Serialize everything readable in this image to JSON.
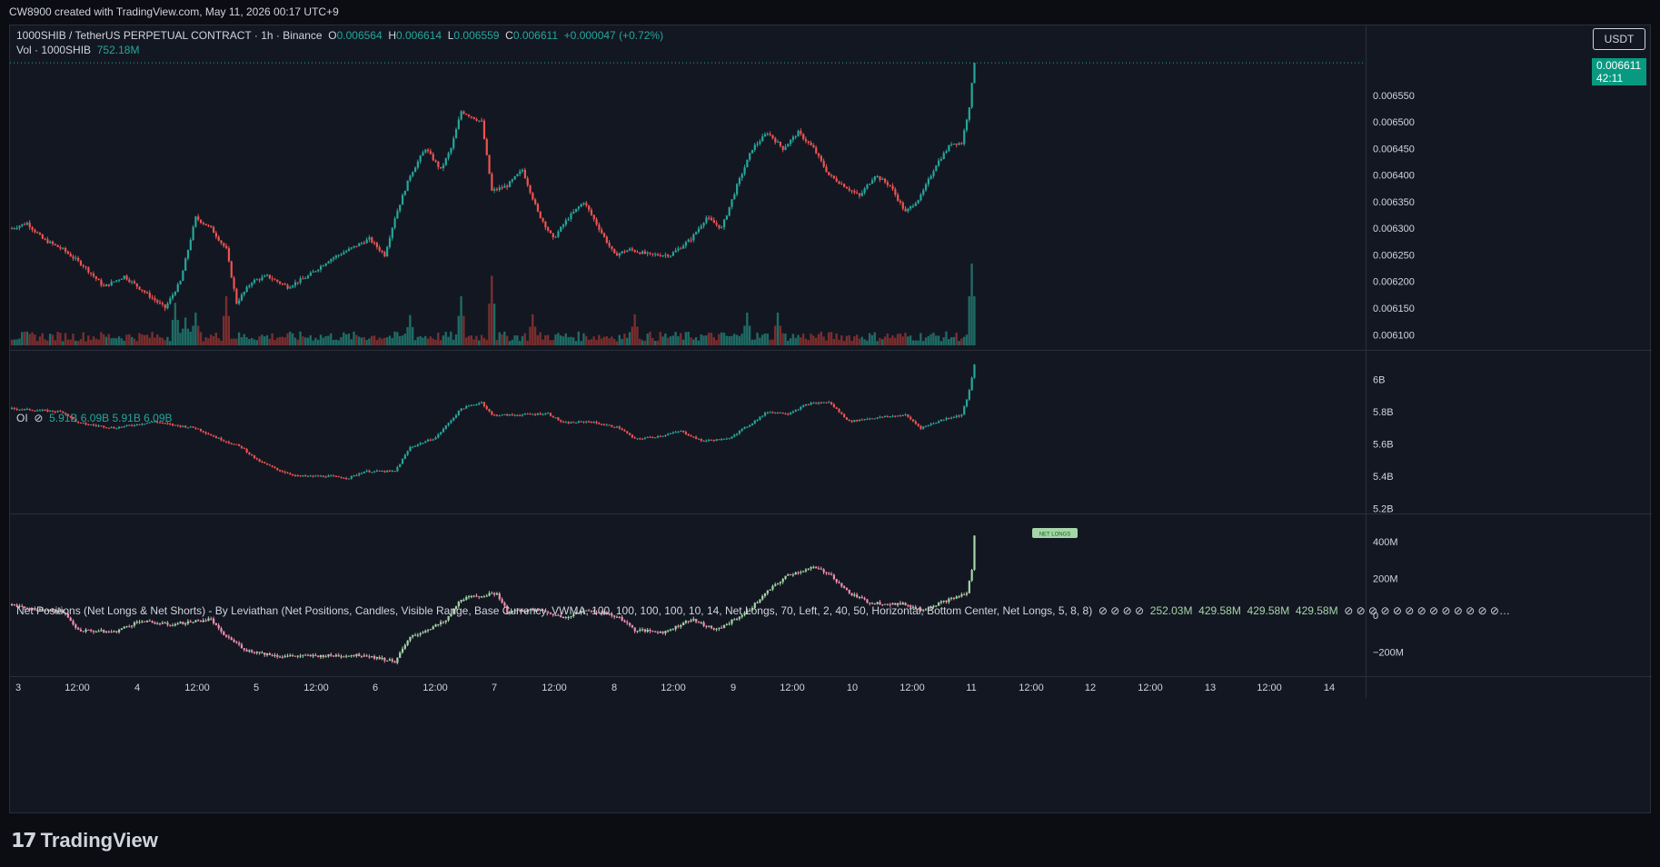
{
  "header": {
    "text": "CW8900 created with TradingView.com, May 11, 2026 00:17 UTC+9"
  },
  "symbol_legend": {
    "title": "1000SHIB / TetherUS PERPETUAL CONTRACT · 1h · Binance",
    "o_label": "O",
    "o": "0.006564",
    "h_label": "H",
    "h": "0.006614",
    "l_label": "L",
    "l": "0.006559",
    "c_label": "C",
    "c": "0.006611",
    "change": "+0.000047 (+0.72%)"
  },
  "vol_legend": {
    "label": "Vol · 1000SHIB",
    "value": "752.18M"
  },
  "oi_legend": {
    "label": "OI",
    "icon": "hidden-eye-icon",
    "values": "5.91B 6.09B 5.91B 6.09B"
  },
  "np_legend": {
    "label": "Net Positions (Net Longs & Net Shorts) - By Leviathan (Net Positions, Candles, Visible Range, Base Currency, VWMA, 100, 100, 100, 100, 10, 14, Net Longs, 70, Left, 2, 40, 50, Horizontal, Bottom Center, Net Longs, 5, 8, 8)",
    "v1": "252.03M",
    "v2": "429.58M",
    "v3": "429.58M",
    "v4": "429.58M",
    "net_longs_tag": "NET LONGS"
  },
  "currency_button": "USDT",
  "price_tag": {
    "price": "0.006611",
    "countdown": "42:11"
  },
  "logo_text": "TradingView",
  "colors": {
    "up": "#26a69a",
    "down": "#ef5350",
    "up_vol": "#1f6b65",
    "down_vol": "#7a2e2e",
    "np_up": "#a5d6a7",
    "np_down": "#f48fb1",
    "bg": "#131722",
    "grid": "#2a2e39"
  },
  "chart_data": [
    {
      "type": "candlestick",
      "title": "1000SHIB / TetherUS PERPETUAL CONTRACT · 1h · Binance",
      "ylabel": "USDT",
      "y_ticks": [
        "0.006550",
        "0.006500",
        "0.006450",
        "0.006400",
        "0.006350",
        "0.006300",
        "0.006250",
        "0.006200",
        "0.006150",
        "0.006100"
      ],
      "ylim": [
        0.00608,
        0.00663
      ],
      "x_ticks": [
        "3",
        "12:00",
        "4",
        "12:00",
        "5",
        "12:00",
        "6",
        "12:00",
        "7",
        "12:00",
        "8",
        "12:00",
        "9",
        "12:00",
        "10",
        "12:00",
        "11",
        "12:00",
        "12",
        "12:00",
        "13",
        "12:00",
        "14"
      ],
      "last_close": 0.006611,
      "close_anchors": [
        [
          0,
          0.0063
        ],
        [
          6,
          0.00631
        ],
        [
          12,
          0.00628
        ],
        [
          20,
          0.00626
        ],
        [
          28,
          0.00623
        ],
        [
          36,
          0.00619
        ],
        [
          44,
          0.00621
        ],
        [
          52,
          0.00618
        ],
        [
          60,
          0.00615
        ],
        [
          66,
          0.0062
        ],
        [
          72,
          0.00632
        ],
        [
          78,
          0.0063
        ],
        [
          84,
          0.00626
        ],
        [
          88,
          0.00616
        ],
        [
          94,
          0.0062
        ],
        [
          100,
          0.00621
        ],
        [
          108,
          0.00619
        ],
        [
          116,
          0.00621
        ],
        [
          124,
          0.00624
        ],
        [
          132,
          0.00626
        ],
        [
          140,
          0.00628
        ],
        [
          146,
          0.00625
        ],
        [
          150,
          0.00632
        ],
        [
          156,
          0.0064
        ],
        [
          162,
          0.00645
        ],
        [
          168,
          0.00641
        ],
        [
          172,
          0.00645
        ],
        [
          176,
          0.00652
        ],
        [
          184,
          0.0065
        ],
        [
          188,
          0.00637
        ],
        [
          194,
          0.00638
        ],
        [
          200,
          0.00641
        ],
        [
          206,
          0.00633
        ],
        [
          212,
          0.00628
        ],
        [
          218,
          0.00632
        ],
        [
          224,
          0.00635
        ],
        [
          230,
          0.0063
        ],
        [
          236,
          0.00625
        ],
        [
          242,
          0.00626
        ],
        [
          250,
          0.00625
        ],
        [
          258,
          0.00625
        ],
        [
          266,
          0.00628
        ],
        [
          272,
          0.00632
        ],
        [
          278,
          0.0063
        ],
        [
          284,
          0.00638
        ],
        [
          290,
          0.00645
        ],
        [
          296,
          0.00648
        ],
        [
          302,
          0.00645
        ],
        [
          308,
          0.00648
        ],
        [
          314,
          0.00645
        ],
        [
          320,
          0.0064
        ],
        [
          326,
          0.00638
        ],
        [
          332,
          0.00636
        ],
        [
          338,
          0.0064
        ],
        [
          344,
          0.00638
        ],
        [
          350,
          0.00633
        ],
        [
          356,
          0.00636
        ],
        [
          362,
          0.00642
        ],
        [
          368,
          0.00646
        ],
        [
          372,
          0.00646
        ],
        [
          375,
          0.00653
        ],
        [
          377,
          0.00661
        ]
      ],
      "volume_label": "Vol · 1000SHIB",
      "volume_last": "752.18M",
      "volume_spikes": [
        [
          64,
          "0.52"
        ],
        [
          68,
          "0.34"
        ],
        [
          72,
          "0.40"
        ],
        [
          84,
          "0.60"
        ],
        [
          156,
          "0.37"
        ],
        [
          176,
          "0.60"
        ],
        [
          188,
          "0.85"
        ],
        [
          204,
          "0.38"
        ],
        [
          244,
          "0.38"
        ],
        [
          288,
          "0.40"
        ],
        [
          300,
          "0.40"
        ],
        [
          376,
          "1.00"
        ]
      ]
    },
    {
      "type": "candlestick",
      "title": "OI",
      "y_ticks": [
        "6B",
        "5.8B",
        "5.6B",
        "5.4B",
        "5.2B"
      ],
      "ylim": [
        5.18,
        6.1
      ],
      "values": [
        "5.91B",
        "6.09B",
        "5.91B",
        "6.09B"
      ],
      "close_anchors": [
        [
          0,
          5.82
        ],
        [
          10,
          5.81
        ],
        [
          20,
          5.8
        ],
        [
          26,
          5.73
        ],
        [
          40,
          5.7
        ],
        [
          56,
          5.74
        ],
        [
          62,
          5.72
        ],
        [
          72,
          5.7
        ],
        [
          80,
          5.64
        ],
        [
          90,
          5.58
        ],
        [
          96,
          5.5
        ],
        [
          104,
          5.44
        ],
        [
          112,
          5.4
        ],
        [
          124,
          5.4
        ],
        [
          132,
          5.39
        ],
        [
          138,
          5.43
        ],
        [
          150,
          5.43
        ],
        [
          156,
          5.58
        ],
        [
          166,
          5.64
        ],
        [
          176,
          5.82
        ],
        [
          184,
          5.86
        ],
        [
          188,
          5.78
        ],
        [
          196,
          5.78
        ],
        [
          210,
          5.79
        ],
        [
          216,
          5.73
        ],
        [
          226,
          5.74
        ],
        [
          238,
          5.7
        ],
        [
          244,
          5.63
        ],
        [
          254,
          5.65
        ],
        [
          262,
          5.68
        ],
        [
          270,
          5.62
        ],
        [
          280,
          5.63
        ],
        [
          288,
          5.71
        ],
        [
          296,
          5.8
        ],
        [
          304,
          5.79
        ],
        [
          312,
          5.85
        ],
        [
          320,
          5.86
        ],
        [
          328,
          5.74
        ],
        [
          336,
          5.76
        ],
        [
          350,
          5.78
        ],
        [
          356,
          5.7
        ],
        [
          366,
          5.76
        ],
        [
          372,
          5.78
        ],
        [
          375,
          5.93
        ],
        [
          377,
          6.09
        ]
      ]
    },
    {
      "type": "candlestick",
      "title": "Net Positions (Net Longs & Net Shorts)",
      "y_ticks": [
        "400M",
        "200M",
        "0",
        "−200M"
      ],
      "ylim": [
        -310,
        460
      ],
      "close_anchors": [
        [
          0,
          60
        ],
        [
          8,
          35
        ],
        [
          20,
          20
        ],
        [
          26,
          -80
        ],
        [
          40,
          -90
        ],
        [
          50,
          -30
        ],
        [
          62,
          -50
        ],
        [
          78,
          -20
        ],
        [
          82,
          -95
        ],
        [
          92,
          -190
        ],
        [
          104,
          -220
        ],
        [
          120,
          -220
        ],
        [
          138,
          -215
        ],
        [
          150,
          -250
        ],
        [
          156,
          -120
        ],
        [
          170,
          -30
        ],
        [
          176,
          90
        ],
        [
          190,
          120
        ],
        [
          194,
          20
        ],
        [
          206,
          30
        ],
        [
          216,
          -10
        ],
        [
          226,
          30
        ],
        [
          238,
          -10
        ],
        [
          244,
          -80
        ],
        [
          256,
          -90
        ],
        [
          266,
          -20
        ],
        [
          276,
          -80
        ],
        [
          288,
          20
        ],
        [
          296,
          130
        ],
        [
          304,
          220
        ],
        [
          314,
          260
        ],
        [
          320,
          230
        ],
        [
          328,
          120
        ],
        [
          336,
          70
        ],
        [
          350,
          60
        ],
        [
          356,
          30
        ],
        [
          366,
          80
        ],
        [
          374,
          120
        ],
        [
          376,
          250
        ],
        [
          377,
          429.58
        ]
      ]
    }
  ]
}
